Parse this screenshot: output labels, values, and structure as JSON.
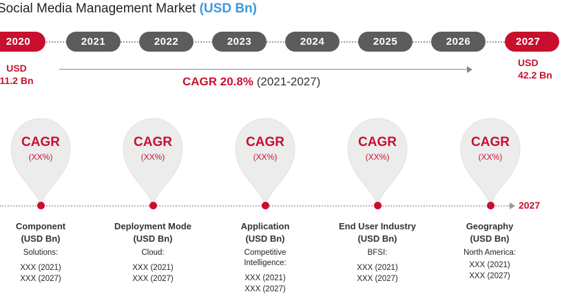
{
  "title": {
    "text": "Social Media Management Market ",
    "unit": "(USD Bn)"
  },
  "timeline": {
    "years": [
      "2020",
      "2021",
      "2022",
      "2023",
      "2024",
      "2025",
      "2026",
      "2027"
    ],
    "start_value_label": "USD",
    "start_value": "11.2 Bn",
    "end_value_label": "USD",
    "end_value": "42.2 Bn",
    "cagr_label": "CAGR 20.8%",
    "cagr_range": "(2021-2027)",
    "end_year": "2027"
  },
  "segments": [
    {
      "cagr": "CAGR",
      "cagr_value": "(XX%)",
      "name": "Component",
      "unit": "(USD Bn)",
      "sub": "Solutions:",
      "v2021": "XXX (2021)",
      "v2027": "XXX (2027)"
    },
    {
      "cagr": "CAGR",
      "cagr_value": "(XX%)",
      "name": "Deployment Mode",
      "unit": "(USD Bn)",
      "sub": "Cloud:",
      "v2021": "XXX (2021)",
      "v2027": "XXX (2027)"
    },
    {
      "cagr": "CAGR",
      "cagr_value": "(XX%)",
      "name": "Application",
      "unit": "(USD Bn)",
      "sub": "Competitive Intelligence:",
      "v2021": "XXX (2021)",
      "v2027": "XXX (2027)"
    },
    {
      "cagr": "CAGR",
      "cagr_value": "(XX%)",
      "name": "End User Industry",
      "unit": "(USD Bn)",
      "sub": "BFSI:",
      "v2021": "XXX (2021)",
      "v2027": "XXX (2027)"
    },
    {
      "cagr": "CAGR",
      "cagr_value": "(XX%)",
      "name": "Geography",
      "unit": "(USD Bn)",
      "sub": "North America:",
      "v2021": "XXX (2021)",
      "v2027": "XXX (2027)"
    }
  ],
  "colors": {
    "accent": "#c8102e",
    "pill": "#5c5c5c",
    "unit": "#3a9ad9"
  }
}
